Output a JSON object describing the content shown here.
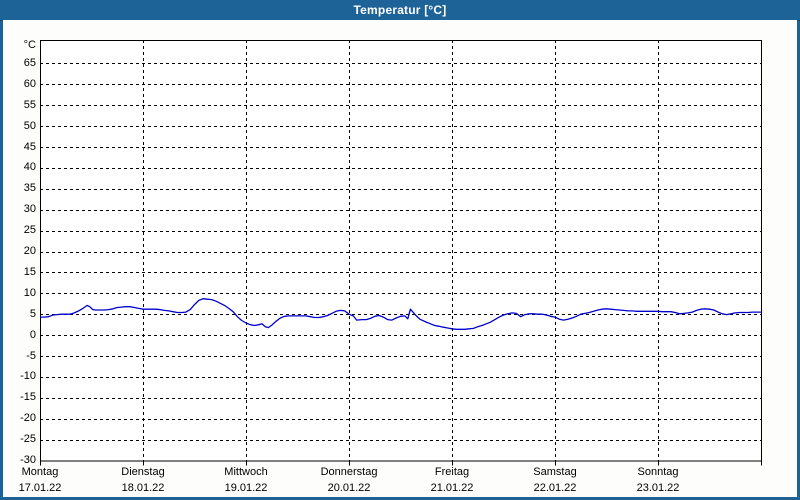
{
  "window": {
    "title": "Temperatur [°C]"
  },
  "colors": {
    "frame": "#1d6398",
    "titlebar_text": "#ffffff",
    "content_bg": "#fdfdfb",
    "plot_bg": "#ffffff",
    "grid": "#000000",
    "axis_text": "#000000",
    "line": "#0000cc"
  },
  "chart_data": {
    "type": "line",
    "title": "Temperatur [°C]",
    "unit_label": "°C",
    "ylabel": "Temperatur",
    "ylim": [
      -30,
      70.6
    ],
    "y_tick_step": 5,
    "y_ticks": [
      65,
      60,
      55,
      50,
      45,
      40,
      35,
      30,
      25,
      20,
      15,
      10,
      5,
      0,
      -5,
      -10,
      -15,
      -20,
      -25,
      -30
    ],
    "grid": "dashed",
    "legend": "none",
    "x_hours_total": 168,
    "x_days": [
      {
        "name": "Montag",
        "date": "17.01.22"
      },
      {
        "name": "Dienstag",
        "date": "18.01.22"
      },
      {
        "name": "Mittwoch",
        "date": "19.01.22"
      },
      {
        "name": "Donnerstag",
        "date": "20.01.22"
      },
      {
        "name": "Freitag",
        "date": "21.01.22"
      },
      {
        "name": "Samstag",
        "date": "22.01.22"
      },
      {
        "name": "Sonntag",
        "date": "23.01.22"
      }
    ],
    "series": [
      {
        "name": "Temperatur",
        "color": "#0000cc",
        "points": [
          [
            0,
            4.3
          ],
          [
            1,
            4.3
          ],
          [
            2,
            4.4
          ],
          [
            3,
            4.8
          ],
          [
            4,
            4.9
          ],
          [
            5,
            5.0
          ],
          [
            6,
            5.0
          ],
          [
            7,
            5.0
          ],
          [
            8,
            5.3
          ],
          [
            9,
            5.8
          ],
          [
            10,
            6.4
          ],
          [
            11,
            7.1
          ],
          [
            11.6,
            6.8
          ],
          [
            12.3,
            6.1
          ],
          [
            13,
            6.0
          ],
          [
            14,
            6.0
          ],
          [
            15,
            6.0
          ],
          [
            16,
            6.1
          ],
          [
            17,
            6.3
          ],
          [
            18,
            6.6
          ],
          [
            19,
            6.7
          ],
          [
            20,
            6.8
          ],
          [
            21,
            6.8
          ],
          [
            22,
            6.6
          ],
          [
            23,
            6.4
          ],
          [
            24,
            6.2
          ],
          [
            25,
            6.2
          ],
          [
            26,
            6.2
          ],
          [
            27,
            6.2
          ],
          [
            28,
            6.1
          ],
          [
            29,
            5.9
          ],
          [
            30,
            5.8
          ],
          [
            31,
            5.6
          ],
          [
            32,
            5.4
          ],
          [
            33,
            5.4
          ],
          [
            34,
            5.5
          ],
          [
            35,
            6.1
          ],
          [
            36,
            7.3
          ],
          [
            37,
            8.3
          ],
          [
            38,
            8.7
          ],
          [
            39,
            8.6
          ],
          [
            40,
            8.5
          ],
          [
            41,
            8.1
          ],
          [
            42,
            7.6
          ],
          [
            43,
            7.1
          ],
          [
            44,
            6.4
          ],
          [
            45,
            5.6
          ],
          [
            46,
            4.4
          ],
          [
            47,
            3.5
          ],
          [
            48,
            2.9
          ],
          [
            49,
            2.5
          ],
          [
            50,
            2.3
          ],
          [
            51,
            2.5
          ],
          [
            51.7,
            2.7
          ],
          [
            52.5,
            2.0
          ],
          [
            53.2,
            1.8
          ],
          [
            54,
            2.4
          ],
          [
            55,
            3.3
          ],
          [
            56,
            4.1
          ],
          [
            57,
            4.5
          ],
          [
            58,
            4.6
          ],
          [
            59,
            4.6
          ],
          [
            60,
            4.6
          ],
          [
            61,
            4.6
          ],
          [
            62,
            4.6
          ],
          [
            63,
            4.4
          ],
          [
            64,
            4.2
          ],
          [
            65,
            4.2
          ],
          [
            66,
            4.4
          ],
          [
            67,
            4.7
          ],
          [
            68,
            5.2
          ],
          [
            69,
            5.7
          ],
          [
            70,
            5.9
          ],
          [
            71,
            5.8
          ],
          [
            72,
            5.0
          ],
          [
            73,
            4.6
          ],
          [
            73.8,
            3.6
          ],
          [
            75,
            3.7
          ],
          [
            76,
            3.7
          ],
          [
            77,
            4.0
          ],
          [
            78,
            4.5
          ],
          [
            79,
            4.7
          ],
          [
            80,
            4.3
          ],
          [
            81,
            3.7
          ],
          [
            82,
            3.6
          ],
          [
            83,
            4.1
          ],
          [
            84,
            4.5
          ],
          [
            85,
            4.6
          ],
          [
            85.7,
            3.9
          ],
          [
            86.3,
            6.2
          ],
          [
            87.4,
            4.9
          ],
          [
            88.5,
            3.8
          ],
          [
            90,
            3.1
          ],
          [
            91,
            2.7
          ],
          [
            92,
            2.3
          ],
          [
            93,
            2.1
          ],
          [
            94,
            1.9
          ],
          [
            95,
            1.7
          ],
          [
            96,
            1.5
          ],
          [
            97,
            1.4
          ],
          [
            98,
            1.4
          ],
          [
            99,
            1.4
          ],
          [
            100,
            1.5
          ],
          [
            101,
            1.6
          ],
          [
            102,
            2.0
          ],
          [
            103,
            2.3
          ],
          [
            104,
            2.7
          ],
          [
            105,
            3.1
          ],
          [
            106,
            3.7
          ],
          [
            107,
            4.3
          ],
          [
            108,
            4.8
          ],
          [
            109,
            5.1
          ],
          [
            110,
            5.3
          ],
          [
            111,
            5.2
          ],
          [
            112,
            4.4
          ],
          [
            113,
            4.9
          ],
          [
            114,
            5.1
          ],
          [
            115,
            5.1
          ],
          [
            116,
            5.0
          ],
          [
            117,
            5.0
          ],
          [
            118,
            4.8
          ],
          [
            119,
            4.5
          ],
          [
            120,
            4.3
          ],
          [
            121,
            3.8
          ],
          [
            122,
            3.6
          ],
          [
            123,
            3.8
          ],
          [
            124,
            4.1
          ],
          [
            125,
            4.5
          ],
          [
            126,
            5.0
          ],
          [
            127,
            5.2
          ],
          [
            128,
            5.4
          ],
          [
            129,
            5.7
          ],
          [
            130,
            6.0
          ],
          [
            131,
            6.2
          ],
          [
            132,
            6.3
          ],
          [
            133,
            6.2
          ],
          [
            134,
            6.1
          ],
          [
            135,
            6.0
          ],
          [
            136,
            5.9
          ],
          [
            137,
            5.8
          ],
          [
            138,
            5.8
          ],
          [
            139,
            5.7
          ],
          [
            140,
            5.7
          ],
          [
            141,
            5.7
          ],
          [
            142,
            5.7
          ],
          [
            143,
            5.7
          ],
          [
            144,
            5.7
          ],
          [
            145,
            5.6
          ],
          [
            146,
            5.6
          ],
          [
            147,
            5.6
          ],
          [
            148,
            5.4
          ],
          [
            149,
            5.1
          ],
          [
            150,
            5.2
          ],
          [
            151,
            5.3
          ],
          [
            152,
            5.5
          ],
          [
            153,
            5.9
          ],
          [
            154,
            6.2
          ],
          [
            155,
            6.3
          ],
          [
            156,
            6.2
          ],
          [
            157,
            6.0
          ],
          [
            158,
            5.5
          ],
          [
            159,
            5.1
          ],
          [
            160,
            4.9
          ],
          [
            161,
            5.1
          ],
          [
            162,
            5.3
          ],
          [
            163,
            5.4
          ],
          [
            164,
            5.4
          ],
          [
            165,
            5.4
          ],
          [
            166,
            5.5
          ],
          [
            167,
            5.5
          ],
          [
            168,
            5.5
          ]
        ]
      }
    ]
  }
}
